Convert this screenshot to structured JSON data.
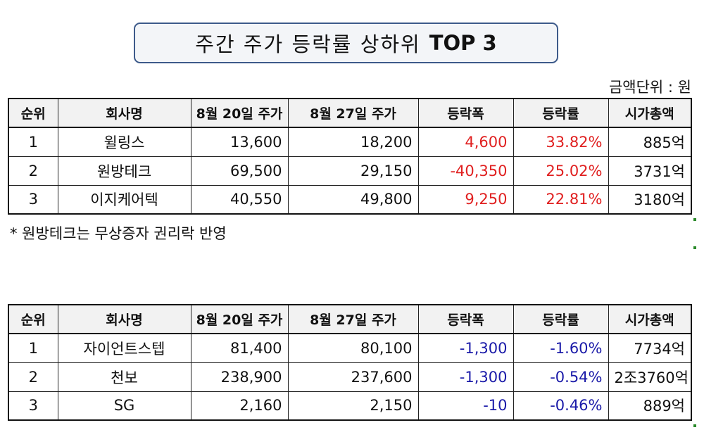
{
  "title": {
    "main": "주간 주가 등락률 상하위",
    "bold": "TOP 3"
  },
  "unit_label": "금액단위 : 원",
  "headers": [
    "순위",
    "회사명",
    "8월 20일 주가",
    "8월 27일 주가",
    "등락폭",
    "등락률",
    "시가총액"
  ],
  "top_table": {
    "rows": [
      {
        "rank": "1",
        "company": "윌링스",
        "price_0820": "13,600",
        "price_0827": "18,200",
        "change": "4,600",
        "rate": "33.82%",
        "cap": "885억"
      },
      {
        "rank": "2",
        "company": "원방테크",
        "price_0820": "69,500",
        "price_0827": "29,150",
        "change": "-40,350",
        "rate": "25.02%",
        "cap": "3731억"
      },
      {
        "rank": "3",
        "company": "이지케어텍",
        "price_0820": "40,550",
        "price_0827": "49,800",
        "change": "9,250",
        "rate": "22.81%",
        "cap": "3180억"
      }
    ],
    "change_color": "#e02020"
  },
  "note": "* 원방테크는 무상증자 권리락 반영",
  "bottom_table": {
    "rows": [
      {
        "rank": "1",
        "company": "자이언트스텝",
        "price_0820": "81,400",
        "price_0827": "80,100",
        "change": "-1,300",
        "rate": "-1.60%",
        "cap": "7734억"
      },
      {
        "rank": "2",
        "company": "천보",
        "price_0820": "238,900",
        "price_0827": "237,600",
        "change": "-1,300",
        "rate": "-0.54%",
        "cap": "2조3760억"
      },
      {
        "rank": "3",
        "company": "SG",
        "price_0820": "2,160",
        "price_0827": "2,150",
        "change": "-10",
        "rate": "-0.46%",
        "cap": "889억"
      }
    ],
    "change_color": "#1a1aa8"
  }
}
